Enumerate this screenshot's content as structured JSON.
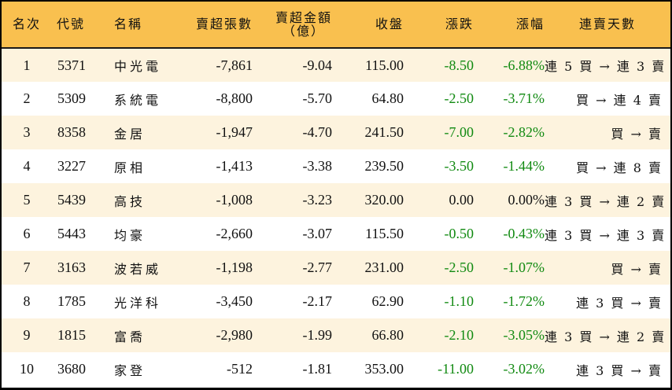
{
  "table": {
    "headers": {
      "rank": "名次",
      "code": "代號",
      "name": "名稱",
      "net_sell_shares": "賣超張數",
      "net_sell_amount_line1": "賣超金額",
      "net_sell_amount_line2": "（億）",
      "close": "收盤",
      "change": "漲跌",
      "change_pct": "漲幅",
      "sell_streak": "連賣天數"
    },
    "colors": {
      "header_bg": "#F9C04F",
      "row_odd_bg": "#FDF3DE",
      "row_even_bg": "#FFFFFF",
      "negative": "#118A11",
      "neutral": "#111111"
    },
    "rows": [
      {
        "rank": "1",
        "code": "5371",
        "name": "中光電",
        "shares": "-7,861",
        "amount": "-9.04",
        "close": "115.00",
        "change": "-8.50",
        "pct": "-6.88%",
        "streak": "連 5 買 → 連 3 賣",
        "trend": "down"
      },
      {
        "rank": "2",
        "code": "5309",
        "name": "系統電",
        "shares": "-8,800",
        "amount": "-5.70",
        "close": "64.80",
        "change": "-2.50",
        "pct": "-3.71%",
        "streak": "買 → 連 4 賣",
        "trend": "down"
      },
      {
        "rank": "3",
        "code": "8358",
        "name": "金居",
        "shares": "-1,947",
        "amount": "-4.70",
        "close": "241.50",
        "change": "-7.00",
        "pct": "-2.82%",
        "streak": "買 → 賣",
        "trend": "down"
      },
      {
        "rank": "4",
        "code": "3227",
        "name": "原相",
        "shares": "-1,413",
        "amount": "-3.38",
        "close": "239.50",
        "change": "-3.50",
        "pct": "-1.44%",
        "streak": "買 → 連 8 賣",
        "trend": "down"
      },
      {
        "rank": "5",
        "code": "5439",
        "name": "高技",
        "shares": "-1,008",
        "amount": "-3.23",
        "close": "320.00",
        "change": "0.00",
        "pct": "0.00%",
        "streak": "連 3 買 → 連 2 賣",
        "trend": "flat"
      },
      {
        "rank": "6",
        "code": "5443",
        "name": "均豪",
        "shares": "-2,660",
        "amount": "-3.07",
        "close": "115.50",
        "change": "-0.50",
        "pct": "-0.43%",
        "streak": "連 3 買 → 連 3 賣",
        "trend": "down"
      },
      {
        "rank": "7",
        "code": "3163",
        "name": "波若威",
        "shares": "-1,198",
        "amount": "-2.77",
        "close": "231.00",
        "change": "-2.50",
        "pct": "-1.07%",
        "streak": "買 → 賣",
        "trend": "down"
      },
      {
        "rank": "8",
        "code": "1785",
        "name": "光洋科",
        "shares": "-3,450",
        "amount": "-2.17",
        "close": "62.90",
        "change": "-1.10",
        "pct": "-1.72%",
        "streak": "連 3 買 → 賣",
        "trend": "down"
      },
      {
        "rank": "9",
        "code": "1815",
        "name": "富喬",
        "shares": "-2,980",
        "amount": "-1.99",
        "close": "66.80",
        "change": "-2.10",
        "pct": "-3.05%",
        "streak": "連 3 買 → 連 2 賣",
        "trend": "down"
      },
      {
        "rank": "10",
        "code": "3680",
        "name": "家登",
        "shares": "-512",
        "amount": "-1.81",
        "close": "353.00",
        "change": "-11.00",
        "pct": "-3.02%",
        "streak": "連 3 買 → 賣",
        "trend": "down"
      }
    ]
  }
}
